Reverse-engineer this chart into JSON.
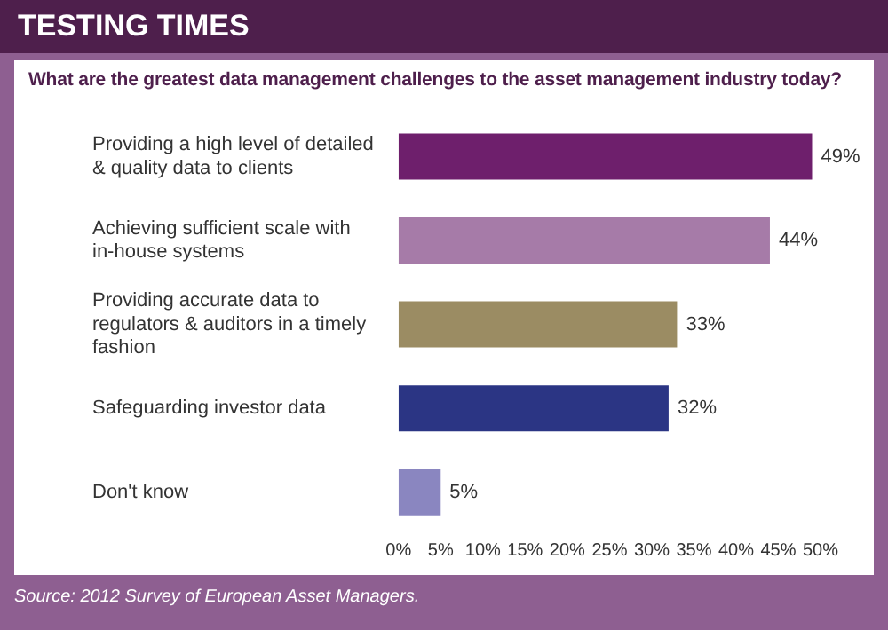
{
  "chart_data": {
    "type": "bar",
    "orientation": "horizontal",
    "title": "TESTING TIMES",
    "subtitle": "What are the greatest data management challenges to the asset management industry today?",
    "categories": [
      "Providing a high level of detailed & quality data to clients",
      "Achieving sufficient scale with in-house systems",
      "Providing accurate data to regulators & auditors in a timely fashion",
      "Safeguarding investor data",
      "Don't know"
    ],
    "values": [
      49,
      44,
      33,
      32,
      5
    ],
    "colors": [
      "#6e1f6c",
      "#a67ba8",
      "#9b8c63",
      "#2b3584",
      "#8a86c0"
    ],
    "value_labels": [
      "49%",
      "44%",
      "33%",
      "32%",
      "5%"
    ],
    "xlim": [
      0,
      50
    ],
    "xticks": [
      {
        "value": 0,
        "label": "0%"
      },
      {
        "value": 5,
        "label": "5%"
      },
      {
        "value": 10,
        "label": "10%"
      },
      {
        "value": 15,
        "label": "15%"
      },
      {
        "value": 20,
        "label": "20%"
      },
      {
        "value": 25,
        "label": "25%"
      },
      {
        "value": 30,
        "label": "30%"
      },
      {
        "value": 35,
        "label": "35%"
      },
      {
        "value": 40,
        "label": "40%"
      },
      {
        "value": 45,
        "label": "45%"
      },
      {
        "value": 50,
        "label": "50%"
      }
    ],
    "grid": false,
    "legend": false,
    "annotations": [
      "Source: 2012 Survey of European Asset Managers."
    ]
  }
}
